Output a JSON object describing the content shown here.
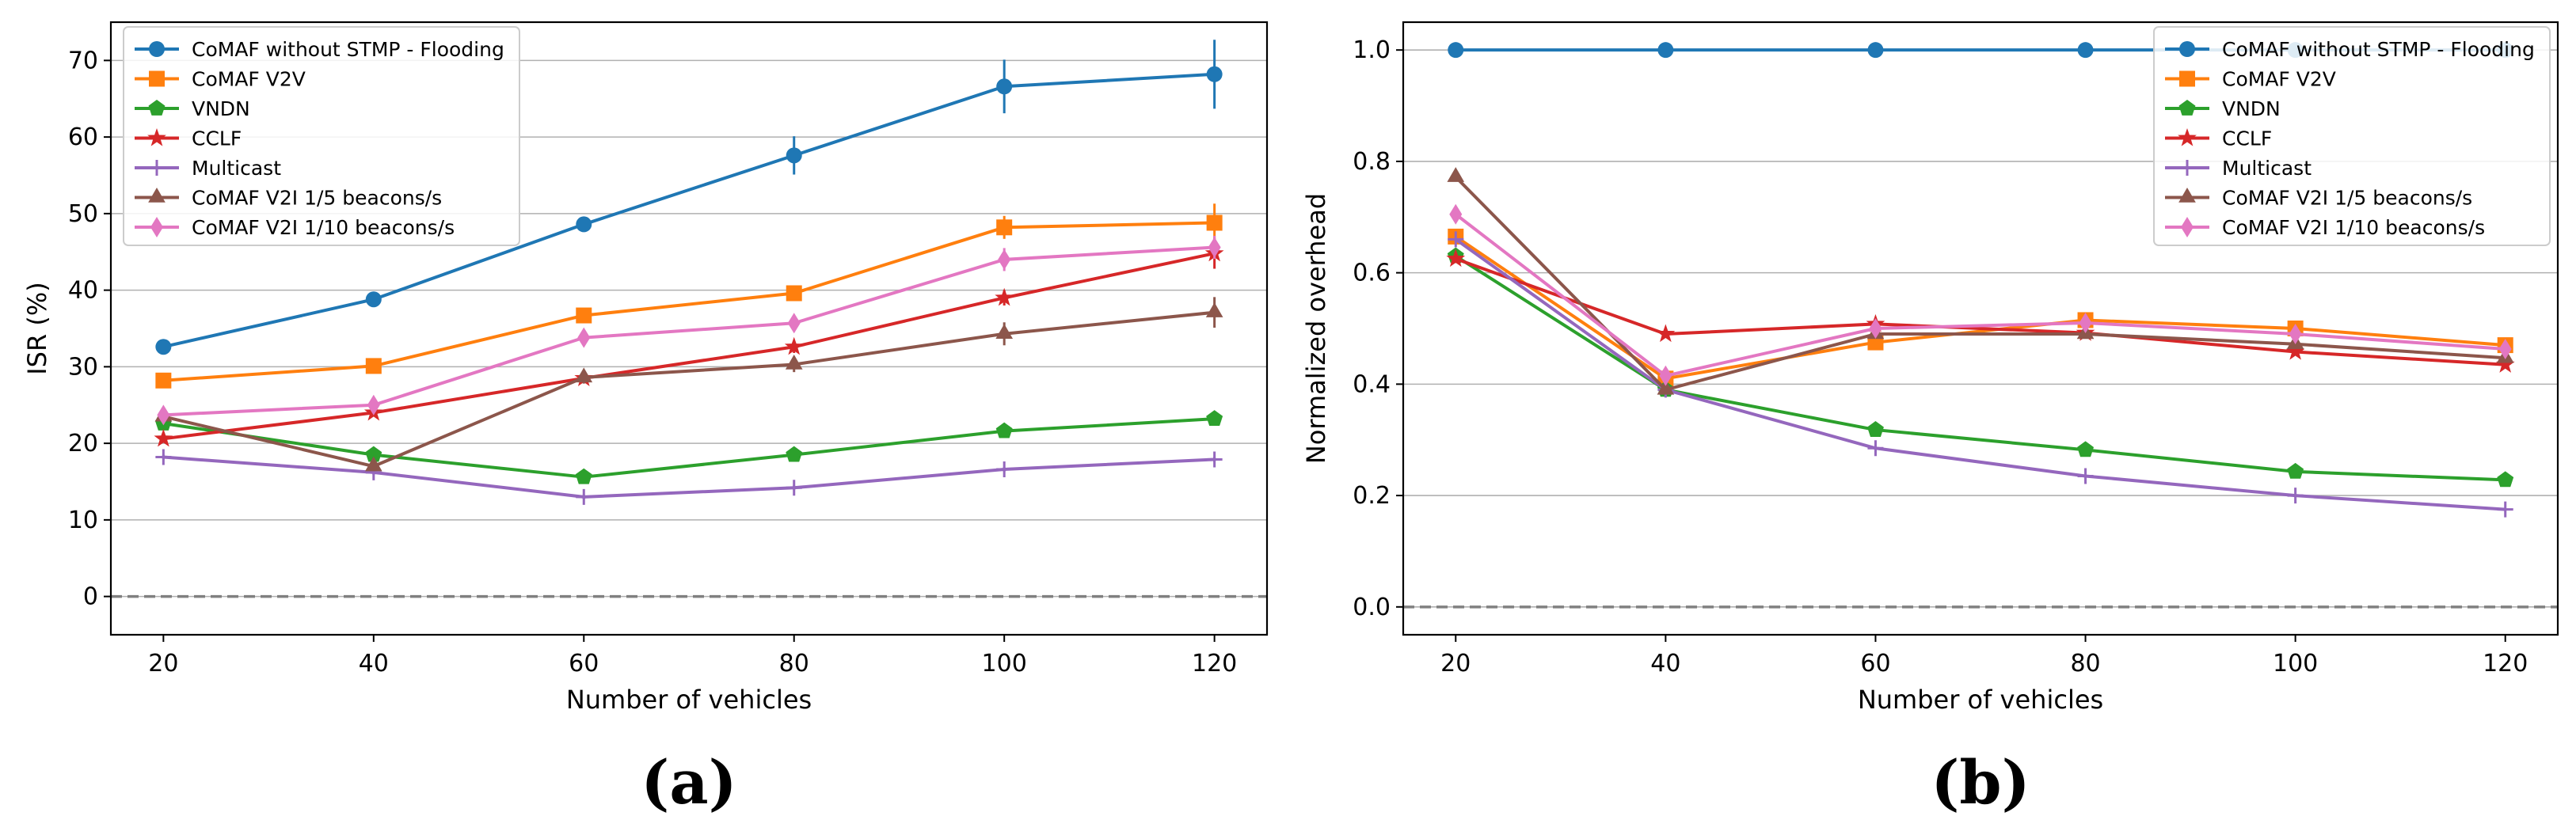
{
  "chart_data": [
    {
      "type": "line",
      "panel_label": "(a)",
      "xlabel": "Number of vehicles",
      "ylabel": "ISR (%)",
      "x": [
        20,
        40,
        60,
        80,
        100,
        120
      ],
      "xticks": [
        "20",
        "40",
        "60",
        "80",
        "100",
        "120"
      ],
      "yticks": [
        "0",
        "10",
        "20",
        "30",
        "40",
        "50",
        "60",
        "70"
      ],
      "xlim": [
        15,
        125
      ],
      "ylim": [
        -5,
        75
      ],
      "grid": "horizontal",
      "reference_line": 0,
      "legend_position": "top-left",
      "series": [
        {
          "name": "CoMAF without STMP - Flooding",
          "color": "#1f77b4",
          "marker": "circle",
          "values": [
            32.6,
            38.8,
            48.6,
            57.6,
            66.6,
            68.2
          ],
          "errors": [
            0.6,
            0.8,
            0.9,
            2.5,
            3.5,
            4.5
          ]
        },
        {
          "name": "CoMAF V2V",
          "color": "#ff7f0e",
          "marker": "square",
          "values": [
            28.2,
            30.1,
            36.7,
            39.6,
            48.2,
            48.8
          ],
          "errors": [
            0.5,
            0.5,
            0.7,
            0.8,
            1.5,
            2.5
          ]
        },
        {
          "name": "VNDN",
          "color": "#2ca02c",
          "marker": "pentagon",
          "values": [
            22.6,
            18.5,
            15.6,
            18.5,
            21.6,
            23.2
          ],
          "errors": [
            0.3,
            0.3,
            0.3,
            0.3,
            0.3,
            0.3
          ]
        },
        {
          "name": "CCLF",
          "color": "#d62728",
          "marker": "star",
          "values": [
            20.6,
            24.0,
            28.5,
            32.6,
            39.0,
            44.8
          ],
          "errors": [
            0.5,
            0.5,
            0.6,
            0.8,
            1.0,
            2.0
          ]
        },
        {
          "name": "Multicast",
          "color": "#9467bd",
          "marker": "plus",
          "values": [
            18.2,
            16.2,
            13.0,
            14.2,
            16.6,
            17.9
          ],
          "errors": [
            0.3,
            0.3,
            0.3,
            0.3,
            0.3,
            0.3
          ]
        },
        {
          "name": "CoMAF V2I 1/5 beacons/s",
          "color": "#8c564b",
          "marker": "triangle",
          "values": [
            23.5,
            17.0,
            28.6,
            30.3,
            34.3,
            37.1
          ],
          "errors": [
            0.5,
            0.5,
            0.8,
            1.0,
            1.5,
            2.0
          ]
        },
        {
          "name": "CoMAF V2I 1/10 beacons/s",
          "color": "#e377c2",
          "marker": "diamond",
          "values": [
            23.7,
            25.0,
            33.8,
            35.7,
            44.0,
            45.6
          ],
          "errors": [
            0.6,
            0.6,
            0.8,
            1.0,
            1.5,
            1.5
          ]
        }
      ]
    },
    {
      "type": "line",
      "panel_label": "(b)",
      "xlabel": "Number of vehicles",
      "ylabel": "Normalized overhead",
      "x": [
        20,
        40,
        60,
        80,
        100,
        120
      ],
      "xticks": [
        "20",
        "40",
        "60",
        "80",
        "100",
        "120"
      ],
      "yticks": [
        "0.0",
        "0.2",
        "0.4",
        "0.6",
        "0.8",
        "1.0"
      ],
      "xlim": [
        15,
        125
      ],
      "ylim": [
        -0.05,
        1.05
      ],
      "grid": "horizontal",
      "reference_line": 0,
      "legend_position": "top-right",
      "series": [
        {
          "name": "CoMAF without STMP - Flooding",
          "color": "#1f77b4",
          "marker": "circle",
          "values": [
            1.0,
            1.0,
            1.0,
            1.0,
            1.0,
            1.0
          ]
        },
        {
          "name": "CoMAF V2V",
          "color": "#ff7f0e",
          "marker": "square",
          "values": [
            0.665,
            0.41,
            0.475,
            0.515,
            0.5,
            0.47
          ]
        },
        {
          "name": "VNDN",
          "color": "#2ca02c",
          "marker": "pentagon",
          "values": [
            0.63,
            0.39,
            0.318,
            0.282,
            0.243,
            0.228
          ]
        },
        {
          "name": "CCLF",
          "color": "#d62728",
          "marker": "star",
          "values": [
            0.625,
            0.49,
            0.508,
            0.492,
            0.458,
            0.435
          ]
        },
        {
          "name": "Multicast",
          "color": "#9467bd",
          "marker": "plus",
          "values": [
            0.66,
            0.39,
            0.285,
            0.235,
            0.2,
            0.175
          ]
        },
        {
          "name": "CoMAF V2I 1/5 beacons/s",
          "color": "#8c564b",
          "marker": "triangle",
          "values": [
            0.772,
            0.39,
            0.49,
            0.49,
            0.472,
            0.447
          ]
        },
        {
          "name": "CoMAF V2I 1/10 beacons/s",
          "color": "#e377c2",
          "marker": "diamond",
          "values": [
            0.705,
            0.415,
            0.5,
            0.51,
            0.49,
            0.463
          ]
        }
      ]
    }
  ]
}
